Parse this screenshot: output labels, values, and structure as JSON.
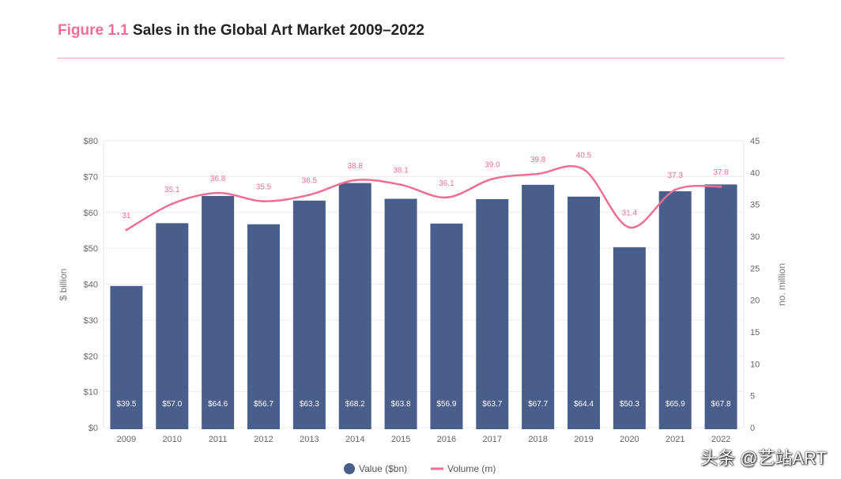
{
  "figure": {
    "label": "Figure 1.1",
    "title": "Sales in the Global Art Market 2009–2022"
  },
  "chart_data": {
    "type": "bar+line",
    "categories": [
      "2009",
      "2010",
      "2011",
      "2012",
      "2013",
      "2014",
      "2015",
      "2016",
      "2017",
      "2018",
      "2019",
      "2020",
      "2021",
      "2022"
    ],
    "series": [
      {
        "name": "Value ($bn)",
        "type": "bar",
        "axis": "left",
        "color": "#4a5e8c",
        "values": [
          39.5,
          57.0,
          64.6,
          56.7,
          63.3,
          68.2,
          63.8,
          56.9,
          63.7,
          67.7,
          64.4,
          50.3,
          65.9,
          67.8
        ],
        "labels": [
          "$39.5",
          "$57.0",
          "$64.6",
          "$56.7",
          "$63.3",
          "$68.2",
          "$63.8",
          "$56.9",
          "$63.7",
          "$67.7",
          "$64.4",
          "$50.3",
          "$65.9",
          "$67.8"
        ]
      },
      {
        "name": "Volume (m)",
        "type": "line",
        "axis": "right",
        "color": "#ee6f93",
        "values": [
          31,
          35.1,
          36.8,
          35.5,
          36.5,
          38.8,
          38.1,
          36.1,
          39.0,
          39.8,
          40.5,
          31.4,
          37.3,
          37.8
        ],
        "labels": [
          "31",
          "35.1",
          "36.8",
          "35.5",
          "36.5",
          "38.8",
          "38.1",
          "36.1",
          "39.0",
          "39.8",
          "40.5",
          "31.4",
          "37.3",
          "37.8"
        ]
      }
    ],
    "y_left": {
      "label": "$ billion",
      "range": [
        0,
        80
      ],
      "ticks": [
        0,
        10,
        20,
        30,
        40,
        50,
        60,
        70,
        80
      ],
      "tick_labels": [
        "$0",
        "$10",
        "$20",
        "$30",
        "$40",
        "$50",
        "$60",
        "$70",
        "$80"
      ]
    },
    "y_right": {
      "label": "no. million",
      "range": [
        0,
        45
      ],
      "ticks": [
        0,
        5,
        10,
        15,
        20,
        25,
        30,
        35,
        40,
        45
      ],
      "tick_labels": [
        "0",
        "5",
        "10",
        "15",
        "20",
        "25",
        "30",
        "35",
        "40",
        "45"
      ]
    },
    "grid": true,
    "legend_position": "bottom-center"
  },
  "watermark": "头条 @艺站ART"
}
